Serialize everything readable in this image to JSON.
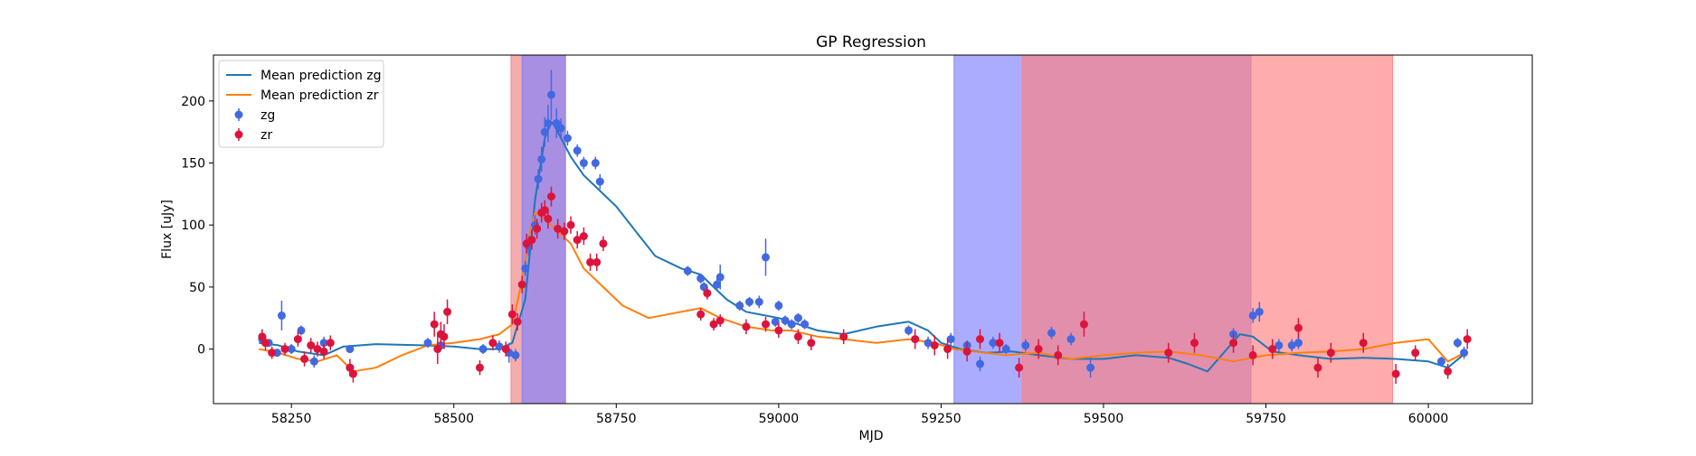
{
  "chart_data": {
    "type": "line",
    "title": "GP Regression",
    "xlabel": "MJD",
    "ylabel": "Flux [uJy]",
    "xlim": [
      58130,
      60160
    ],
    "ylim": [
      -44,
      237
    ],
    "xticks": [
      58250,
      58500,
      58750,
      59000,
      59250,
      59500,
      59750,
      60000
    ],
    "yticks": [
      0,
      50,
      100,
      150,
      200
    ],
    "grid": false,
    "legend_position": "top-left",
    "legend": [
      {
        "label": "Mean prediction zg",
        "kind": "line",
        "color": "#1f77b4"
      },
      {
        "label": "Mean prediction zr",
        "kind": "line",
        "color": "#ff7f0e"
      },
      {
        "label": "zg",
        "kind": "marker",
        "color": "#4169e1"
      },
      {
        "label": "zr",
        "kind": "marker",
        "color": "#dc143c"
      }
    ],
    "shaded_regions": [
      {
        "band": "zr",
        "x0": 58588,
        "x1": 58670,
        "color": "#f08080"
      },
      {
        "band": "zg",
        "x0": 58605,
        "x1": 58672,
        "color": "#8080ff"
      },
      {
        "band": "zg",
        "x0": 59270,
        "x1": 59727,
        "color": "#8080ff"
      },
      {
        "band": "zr",
        "x0": 59375,
        "x1": 59945,
        "color": "#ff8080"
      }
    ],
    "series": [
      {
        "name": "Mean prediction zg",
        "kind": "line",
        "color": "#1f77b4",
        "x": [
          58200,
          58230,
          58260,
          58300,
          58330,
          58380,
          58450,
          58500,
          58540,
          58570,
          58590,
          58610,
          58625,
          58640,
          58650,
          58655,
          58665,
          58680,
          58700,
          58720,
          58750,
          58780,
          58810,
          58850,
          58880,
          58900,
          58920,
          58950,
          58980,
          59000,
          59030,
          59060,
          59100,
          59150,
          59200,
          59230,
          59250,
          59280,
          59320,
          59360,
          59400,
          59450,
          59500,
          59550,
          59600,
          59630,
          59660,
          59690,
          59710,
          59730,
          59760,
          59800,
          59850,
          59900,
          59950,
          60000,
          60030,
          60060
        ],
        "y": [
          5,
          3,
          -2,
          -5,
          2,
          4,
          3,
          2,
          0,
          0,
          5,
          40,
          120,
          170,
          183,
          180,
          170,
          155,
          140,
          130,
          115,
          95,
          75,
          65,
          60,
          50,
          40,
          30,
          27,
          25,
          20,
          15,
          12,
          18,
          22,
          15,
          5,
          0,
          -3,
          -2,
          -5,
          -8,
          -8,
          -5,
          -7,
          -12,
          -18,
          0,
          12,
          10,
          -2,
          -5,
          -8,
          -7,
          -8,
          -10,
          -15,
          -2
        ]
      },
      {
        "name": "Mean prediction zr",
        "kind": "line",
        "color": "#ff7f0e",
        "x": [
          58200,
          58230,
          58260,
          58290,
          58320,
          58345,
          58380,
          58420,
          58460,
          58500,
          58540,
          58570,
          58590,
          58605,
          58615,
          58625,
          58640,
          58660,
          58680,
          58700,
          58730,
          58760,
          58800,
          58850,
          58880,
          58910,
          58950,
          58990,
          59020,
          59060,
          59100,
          59150,
          59200,
          59240,
          59270,
          59300,
          59350,
          59400,
          59450,
          59500,
          59550,
          59600,
          59650,
          59700,
          59750,
          59800,
          59850,
          59900,
          59950,
          60000,
          60030,
          60060
        ],
        "y": [
          0,
          -3,
          -8,
          -10,
          -5,
          -18,
          -15,
          -5,
          3,
          5,
          8,
          12,
          20,
          55,
          90,
          110,
          105,
          95,
          85,
          65,
          50,
          35,
          25,
          30,
          33,
          25,
          18,
          15,
          15,
          10,
          8,
          5,
          8,
          5,
          0,
          -2,
          -5,
          -3,
          -8,
          -5,
          -3,
          -2,
          -5,
          -10,
          -5,
          -3,
          -2,
          0,
          5,
          8,
          -10,
          -2
        ]
      },
      {
        "name": "zg",
        "kind": "scatter",
        "color": "#4169e1",
        "x": [
          58205,
          58215,
          58228,
          58235,
          58250,
          58265,
          58285,
          58300,
          58340,
          58460,
          58480,
          58545,
          58570,
          58585,
          58595,
          58610,
          58615,
          58625,
          58630,
          58635,
          58640,
          58645,
          58650,
          58658,
          58665,
          58675,
          58690,
          58700,
          58718,
          58725,
          58860,
          58880,
          58885,
          58905,
          58910,
          58940,
          58955,
          58970,
          58980,
          58995,
          59000,
          59010,
          59020,
          59030,
          59040,
          59200,
          59230,
          59265,
          59290,
          59310,
          59330,
          59350,
          59380,
          59420,
          59450,
          59480,
          59700,
          59730,
          59740,
          59770,
          59790,
          59800,
          60020,
          60045,
          60055
        ],
        "y": [
          8,
          5,
          -3,
          27,
          0,
          15,
          -10,
          5,
          0,
          5,
          3,
          0,
          2,
          -3,
          -5,
          65,
          83,
          100,
          137,
          153,
          175,
          182,
          205,
          182,
          178,
          170,
          160,
          150,
          150,
          135,
          63,
          57,
          50,
          52,
          58,
          35,
          38,
          38,
          74,
          22,
          35,
          23,
          20,
          25,
          20,
          15,
          5,
          8,
          3,
          -12,
          5,
          0,
          3,
          13,
          8,
          -15,
          12,
          27,
          30,
          3,
          3,
          5,
          -10,
          5,
          -3
        ],
        "err": [
          3,
          3,
          3,
          12,
          4,
          4,
          5,
          5,
          3,
          4,
          4,
          4,
          5,
          8,
          5,
          6,
          8,
          8,
          8,
          10,
          12,
          15,
          20,
          12,
          8,
          6,
          5,
          5,
          5,
          6,
          4,
          4,
          4,
          5,
          10,
          4,
          4,
          5,
          15,
          4,
          4,
          4,
          4,
          4,
          4,
          4,
          5,
          5,
          4,
          6,
          5,
          4,
          5,
          5,
          5,
          8,
          5,
          6,
          8,
          5,
          5,
          5,
          4,
          4,
          5
        ]
      },
      {
        "name": "zr",
        "kind": "scatter",
        "color": "#dc143c",
        "x": [
          58205,
          58210,
          58220,
          58240,
          58260,
          58270,
          58280,
          58290,
          58300,
          58310,
          58340,
          58345,
          58470,
          58475,
          58480,
          58485,
          58490,
          58540,
          58560,
          58580,
          58590,
          58598,
          58605,
          58612,
          58620,
          58628,
          58635,
          58640,
          58645,
          58650,
          58660,
          58670,
          58680,
          58690,
          58700,
          58710,
          58720,
          58730,
          58880,
          58890,
          58900,
          58910,
          58950,
          58980,
          59000,
          59030,
          59050,
          59100,
          59210,
          59240,
          59260,
          59290,
          59310,
          59340,
          59370,
          59400,
          59430,
          59470,
          59600,
          59640,
          59700,
          59730,
          59760,
          59800,
          59830,
          59850,
          59900,
          59950,
          59980,
          60030,
          60060
        ],
        "y": [
          10,
          5,
          -3,
          0,
          8,
          -8,
          3,
          0,
          -2,
          5,
          -15,
          -20,
          20,
          0,
          12,
          10,
          30,
          -15,
          5,
          0,
          28,
          22,
          52,
          85,
          88,
          97,
          110,
          112,
          105,
          123,
          97,
          95,
          100,
          88,
          91,
          70,
          70,
          85,
          28,
          45,
          20,
          23,
          18,
          20,
          15,
          10,
          5,
          10,
          8,
          3,
          0,
          -2,
          8,
          5,
          -15,
          0,
          -5,
          20,
          -3,
          5,
          5,
          -5,
          0,
          17,
          -15,
          -3,
          5,
          -20,
          -3,
          -18,
          8
        ],
        "err": [
          6,
          6,
          5,
          5,
          6,
          6,
          6,
          6,
          6,
          6,
          7,
          7,
          10,
          12,
          10,
          10,
          10,
          6,
          6,
          6,
          8,
          7,
          7,
          8,
          8,
          8,
          8,
          8,
          8,
          8,
          8,
          7,
          7,
          7,
          7,
          7,
          7,
          6,
          5,
          5,
          5,
          5,
          6,
          6,
          6,
          6,
          6,
          6,
          8,
          8,
          8,
          8,
          8,
          8,
          8,
          8,
          8,
          10,
          8,
          8,
          8,
          8,
          8,
          8,
          8,
          8,
          8,
          8,
          6,
          6,
          8
        ]
      }
    ]
  }
}
